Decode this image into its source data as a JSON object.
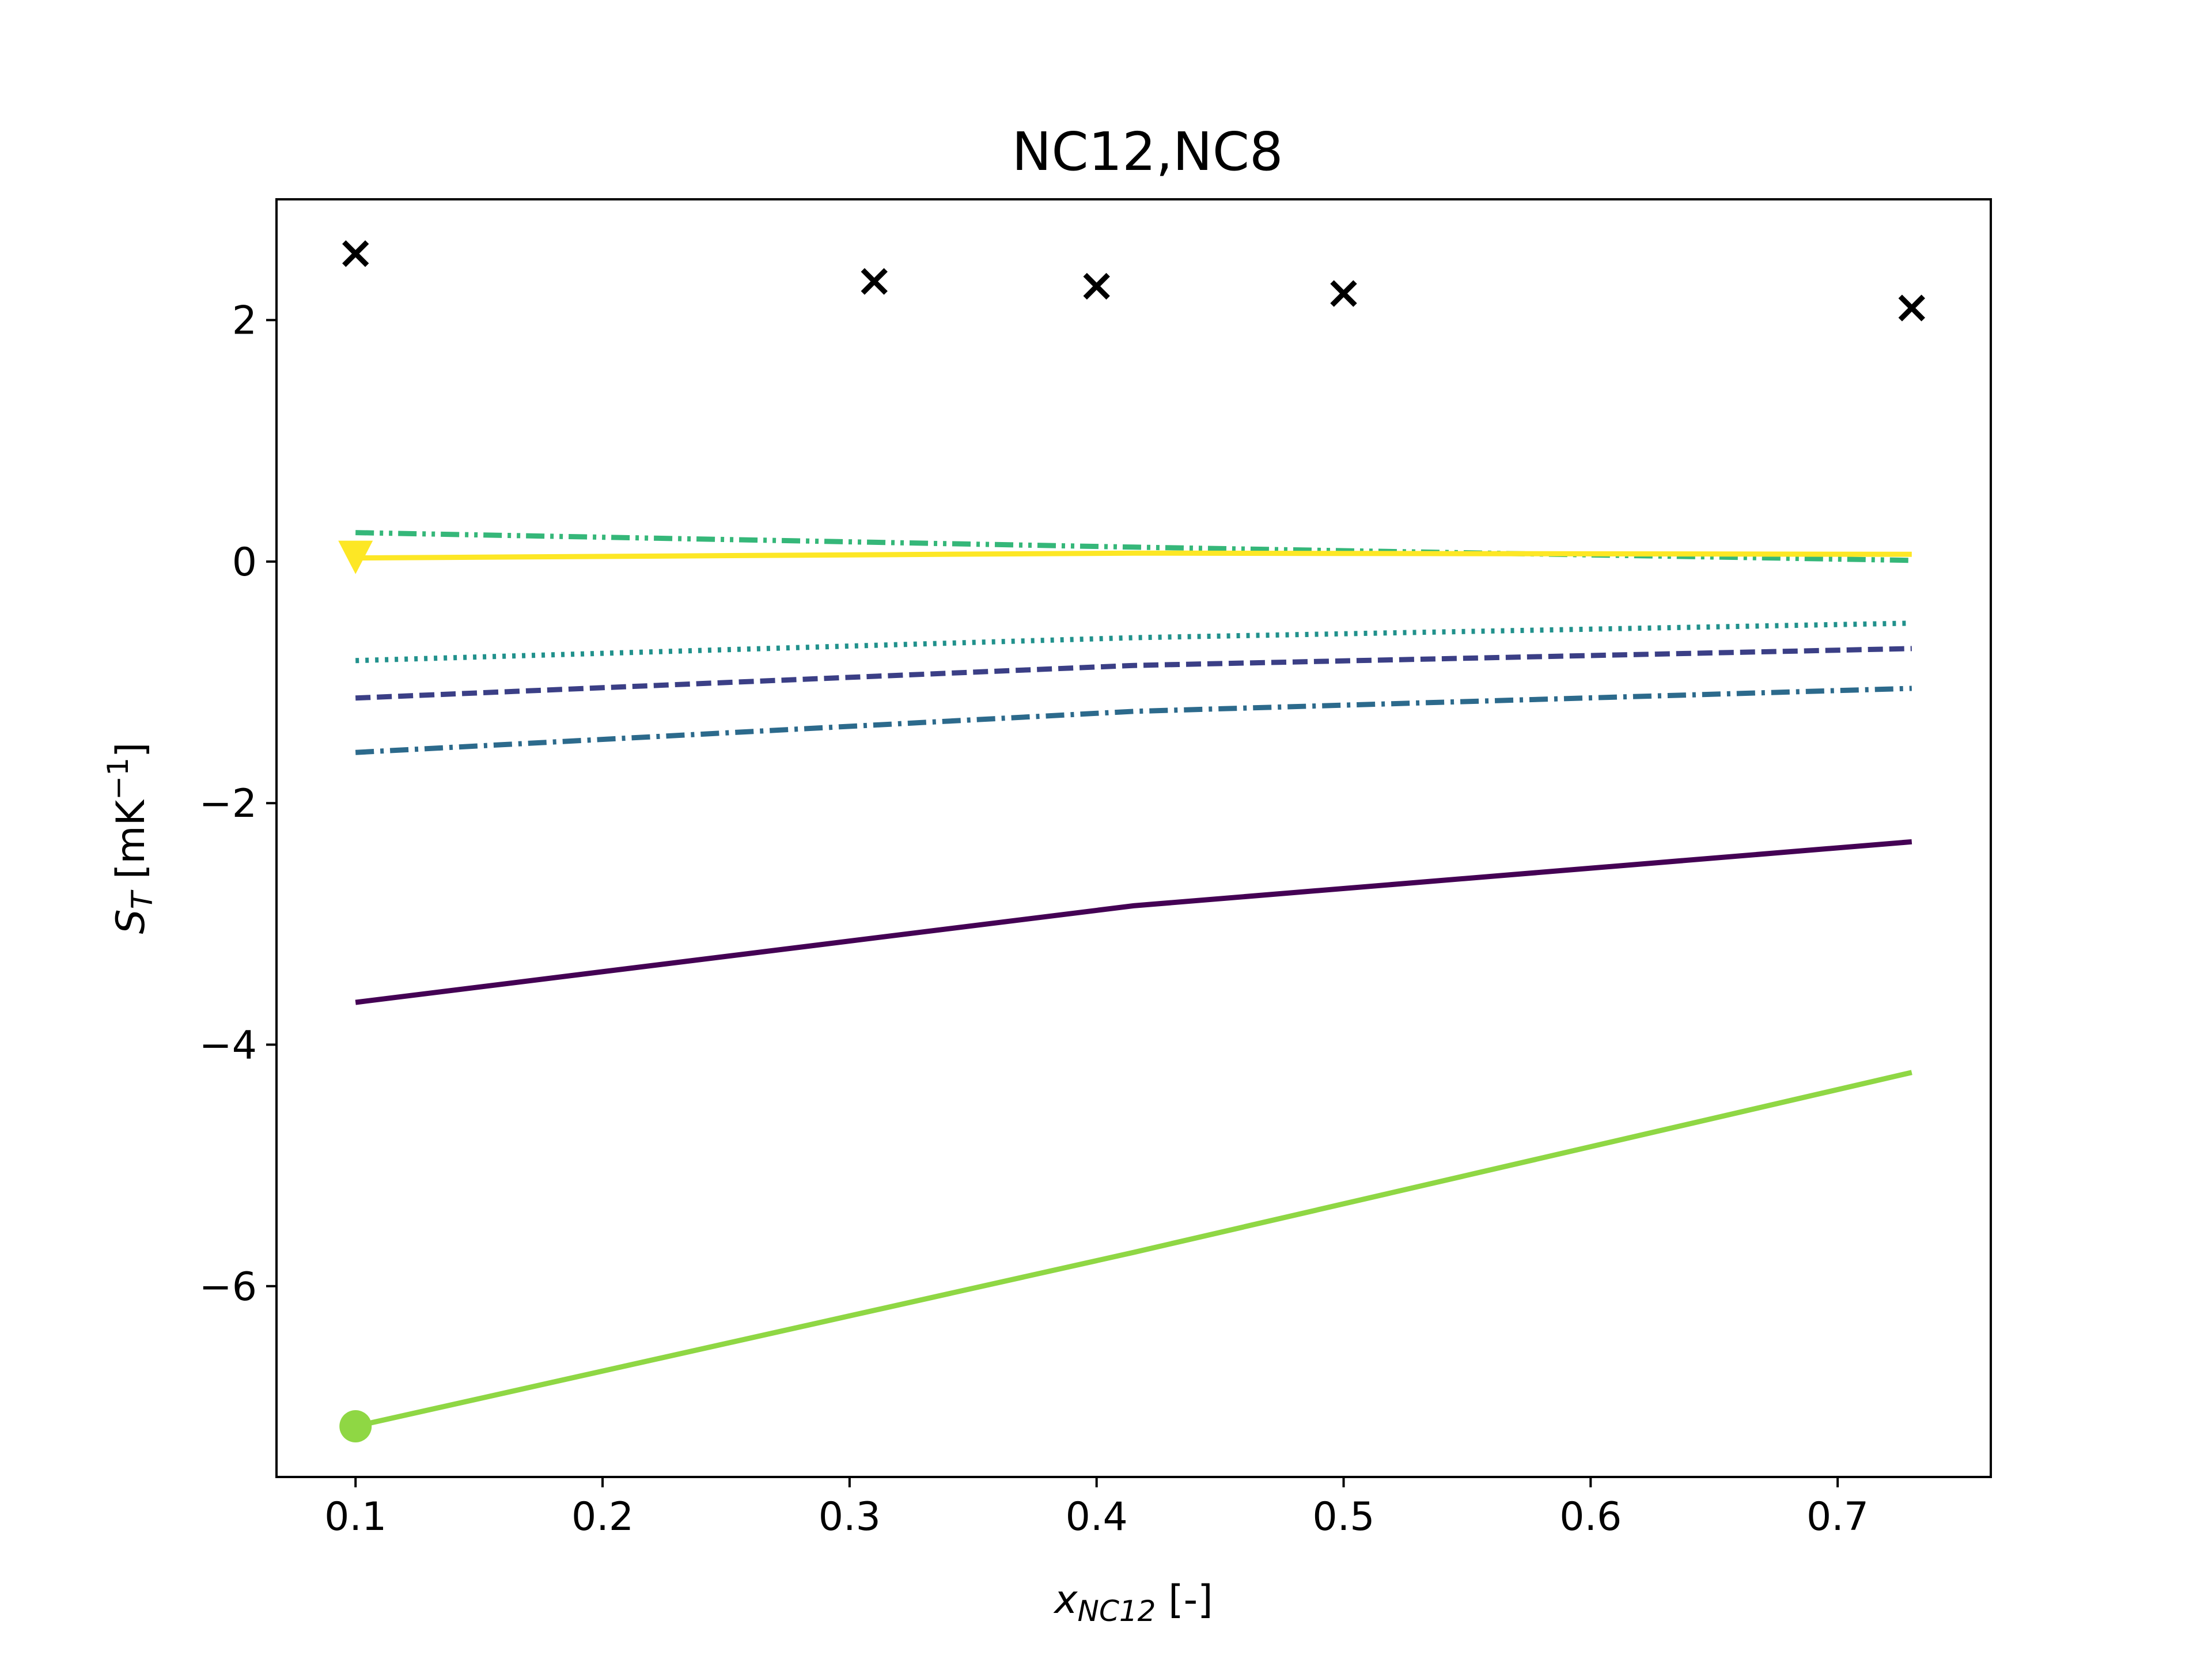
{
  "chart_data": {
    "type": "line",
    "title": "NC12,NC8",
    "xlabel": {
      "base": "x",
      "sub": "NC12",
      "rest": " [-]"
    },
    "ylabel": {
      "base": "S",
      "sub": "T",
      "rest": " [mK",
      "sup": "−1",
      "end": "]"
    },
    "xlim": [
      0.068,
      0.762
    ],
    "ylim": [
      -7.58,
      3.0
    ],
    "xticks": [
      0.1,
      0.2,
      0.3,
      0.4,
      0.5,
      0.6,
      0.7
    ],
    "xtick_labels": [
      "0.1",
      "0.2",
      "0.3",
      "0.4",
      "0.5",
      "0.6",
      "0.7"
    ],
    "yticks": [
      -6,
      -4,
      -2,
      0,
      2
    ],
    "ytick_labels": [
      "−6",
      "−4",
      "−2",
      "0",
      "2"
    ],
    "grid": false,
    "series": [
      {
        "color": "#440154",
        "style": "solid",
        "x": [
          0.1,
          0.415,
          0.73
        ],
        "y": [
          -3.65,
          -2.85,
          -2.32
        ]
      },
      {
        "color": "#3b3f86",
        "style": "dashed",
        "x": [
          0.1,
          0.415,
          0.73
        ],
        "y": [
          -1.13,
          -0.86,
          -0.72
        ]
      },
      {
        "color": "#2c6a8c",
        "style": "dashdot",
        "x": [
          0.1,
          0.415,
          0.73
        ],
        "y": [
          -1.58,
          -1.24,
          -1.05
        ]
      },
      {
        "color": "#21918c",
        "style": "dotted",
        "x": [
          0.1,
          0.415,
          0.73
        ],
        "y": [
          -0.82,
          -0.63,
          -0.51
        ]
      },
      {
        "color": "#35b779",
        "style": "dashdotdot",
        "x": [
          0.1,
          0.415,
          0.73
        ],
        "y": [
          0.24,
          0.12,
          0.01
        ]
      },
      {
        "color": "#8fd744",
        "style": "solid",
        "x": [
          0.1,
          0.415,
          0.73
        ],
        "y": [
          -7.16,
          -5.72,
          -4.23
        ],
        "marker": "circle",
        "marker_at": [
          0.1,
          -7.16
        ]
      },
      {
        "color": "#fde725",
        "style": "solid",
        "x": [
          0.1,
          0.415,
          0.73
        ],
        "y": [
          0.03,
          0.07,
          0.06
        ],
        "marker": "triangle-down",
        "marker_at": [
          0.1,
          0.03
        ]
      }
    ],
    "scatter": {
      "color": "#000000",
      "marker": "x",
      "x": [
        0.1,
        0.31,
        0.4,
        0.5,
        0.73
      ],
      "y": [
        2.55,
        2.32,
        2.28,
        2.22,
        2.1
      ]
    }
  }
}
